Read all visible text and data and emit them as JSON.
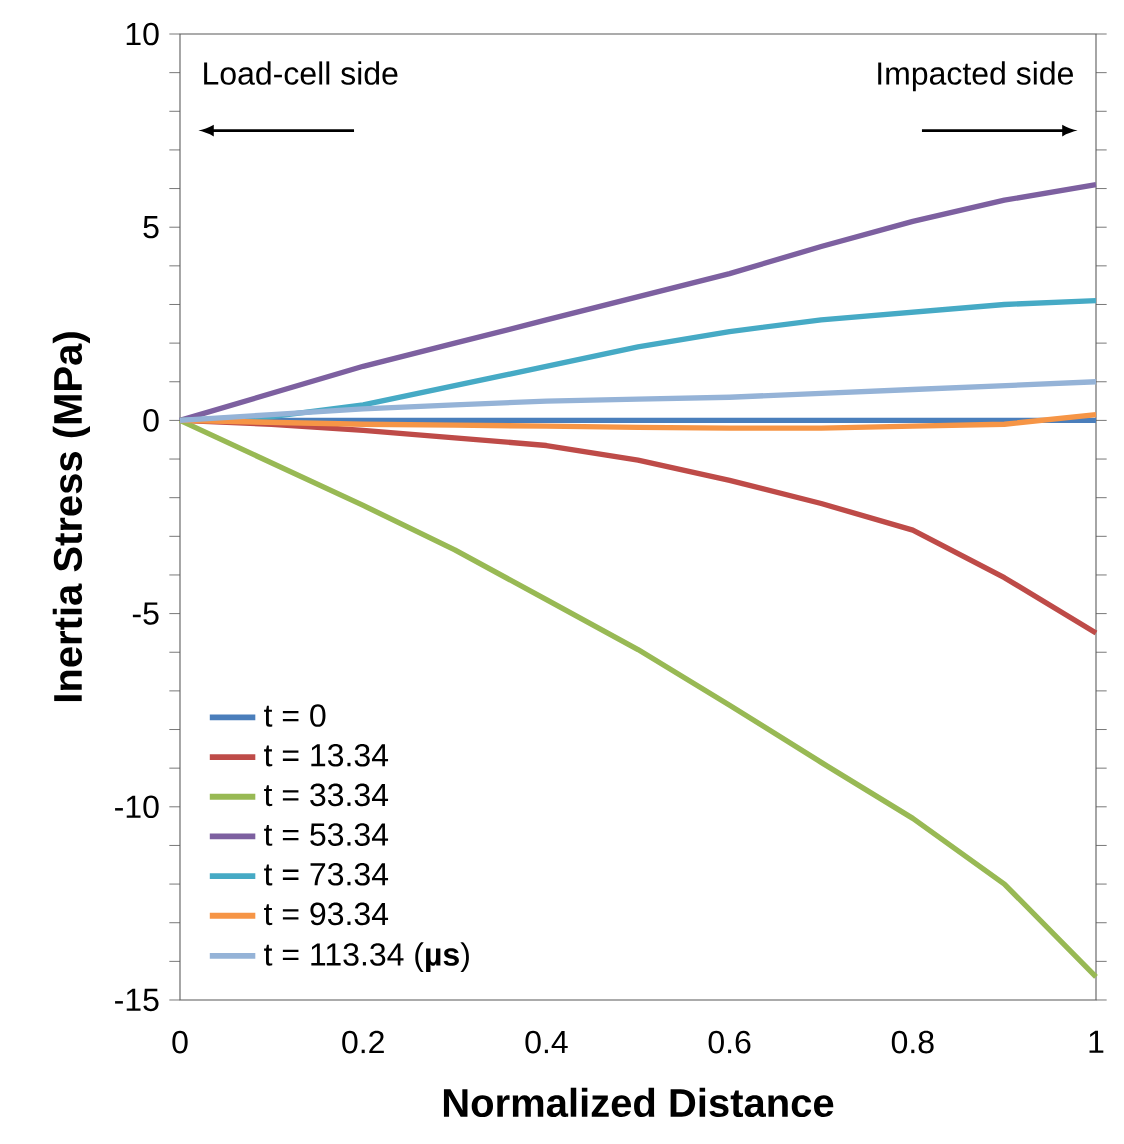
{
  "chart_data": {
    "type": "line",
    "xlabel": "Normalized Distance",
    "ylabel": "Inertia Stress (MPa)",
    "annotations": [
      "Load-cell side",
      "Impacted side"
    ],
    "x": [
      0,
      0.1,
      0.2,
      0.3,
      0.4,
      0.5,
      0.6,
      0.7,
      0.8,
      0.9,
      1.0
    ],
    "series": [
      {
        "name": "t = 0",
        "color": "#4a7ebb",
        "values": [
          0,
          0,
          0,
          0,
          0,
          0,
          0,
          0,
          0,
          0,
          0
        ]
      },
      {
        "name": "t = 13.34",
        "color": "#be4b48",
        "values": [
          0,
          -0.1,
          -0.26,
          -0.45,
          -0.65,
          -1.03,
          -1.55,
          -2.15,
          -2.84,
          -4.07,
          -5.5
        ]
      },
      {
        "name": "t = 33.34",
        "color": "#98b954",
        "values": [
          0,
          -1.1,
          -2.2,
          -3.35,
          -4.64,
          -5.93,
          -7.37,
          -8.85,
          -10.3,
          -12.0,
          -14.4
        ]
      },
      {
        "name": "t = 53.34",
        "color": "#7d60a0",
        "values": [
          0,
          0.7,
          1.4,
          2.0,
          2.6,
          3.2,
          3.8,
          4.5,
          5.15,
          5.7,
          6.1
        ]
      },
      {
        "name": "t = 73.34",
        "color": "#46aac5",
        "values": [
          0,
          0.1,
          0.4,
          0.9,
          1.4,
          1.9,
          2.3,
          2.6,
          2.8,
          3.0,
          3.1
        ]
      },
      {
        "name": "t = 93.34",
        "color": "#f69546",
        "values": [
          0,
          -0.05,
          -0.1,
          -0.12,
          -0.15,
          -0.18,
          -0.2,
          -0.2,
          -0.15,
          -0.1,
          0.15
        ]
      },
      {
        "name": "t = 113.34   (**µs**)",
        "color": "#95b3d7",
        "values": [
          0,
          0.15,
          0.3,
          0.4,
          0.5,
          0.55,
          0.6,
          0.7,
          0.8,
          0.9,
          1.0
        ]
      }
    ],
    "xlim": [
      0,
      1
    ],
    "xticks": [
      0,
      0.2,
      0.4,
      0.6,
      0.8,
      1
    ],
    "ylim": [
      -15,
      10
    ],
    "yticks": [
      -15,
      {
        "value": -14,
        "label": null
      },
      {
        "value": -13,
        "label": null
      },
      {
        "value": -12,
        "label": null
      },
      {
        "value": -11,
        "label": null
      },
      -10,
      {
        "value": -9,
        "label": null
      },
      {
        "value": -8,
        "label": null
      },
      {
        "value": -7,
        "label": null
      },
      {
        "value": -6,
        "label": null
      },
      -5,
      {
        "value": -4,
        "label": null
      },
      {
        "value": -3,
        "label": null
      },
      {
        "value": -2,
        "label": null
      },
      {
        "value": -1,
        "label": null
      },
      0,
      {
        "value": 1,
        "label": null
      },
      {
        "value": 2,
        "label": null
      },
      {
        "value": 3,
        "label": null
      },
      {
        "value": 4,
        "label": null
      },
      5,
      {
        "value": 6,
        "label": null
      },
      {
        "value": 7,
        "label": null
      },
      {
        "value": 8,
        "label": null
      },
      {
        "value": 9,
        "label": null
      },
      10
    ],
    "grid": false,
    "legend": "bottom left",
    "marker": "none",
    "line_style": "solid"
  }
}
